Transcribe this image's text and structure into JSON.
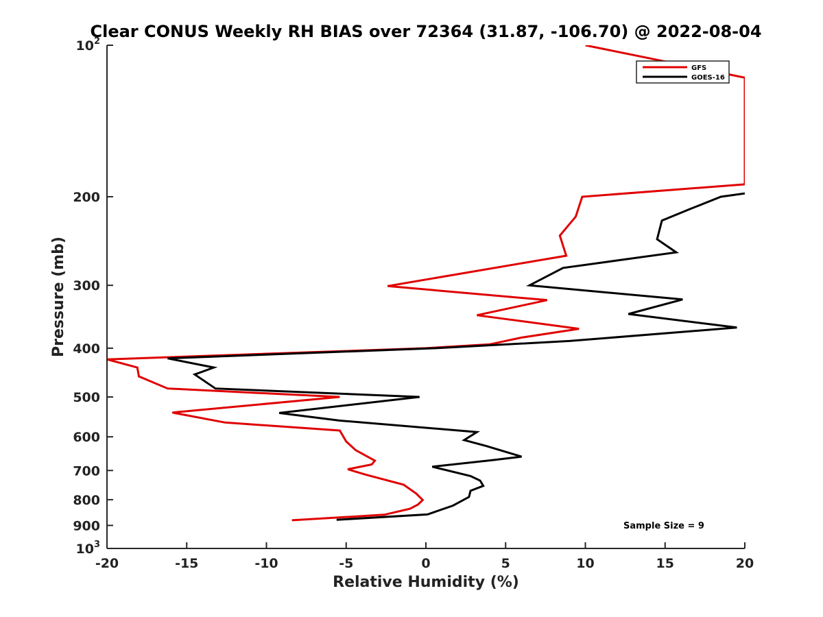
{
  "chart_data": {
    "type": "line",
    "title": "Clear CONUS Weekly RH BIAS over 72364 (31.87, -106.70) @ 2022-08-04",
    "xlabel": "Relative Humidity (%)",
    "ylabel": "Pressure (mb)",
    "xlim": [
      -20,
      20
    ],
    "ylim": [
      100,
      1000
    ],
    "yscale": "log",
    "y_reversed": true,
    "grid": false,
    "legend_position": "top-right",
    "x_ticks": [
      "-20",
      "-15",
      "-10",
      "-5",
      "0",
      "5",
      "10",
      "15",
      "20"
    ],
    "y_ticks": [
      {
        "value": 100,
        "base": "10",
        "exp": "2"
      },
      {
        "value": 200,
        "base": "200",
        "exp": ""
      },
      {
        "value": 300,
        "base": "300",
        "exp": ""
      },
      {
        "value": 400,
        "base": "400",
        "exp": ""
      },
      {
        "value": 500,
        "base": "500",
        "exp": ""
      },
      {
        "value": 600,
        "base": "600",
        "exp": ""
      },
      {
        "value": 700,
        "base": "700",
        "exp": ""
      },
      {
        "value": 800,
        "base": "800",
        "exp": ""
      },
      {
        "value": 900,
        "base": "900",
        "exp": ""
      },
      {
        "value": 1000,
        "base": "10",
        "exp": "3"
      }
    ],
    "annotation": "Sample Size = 9",
    "series": [
      {
        "name": "GFS",
        "color": "#e00000",
        "points": [
          {
            "x": 10,
            "y": 100
          },
          {
            "x": 20,
            "y": 116
          },
          {
            "x": 20,
            "y": 189
          },
          {
            "x": 9.8,
            "y": 200
          },
          {
            "x": 9.4,
            "y": 219
          },
          {
            "x": 8.4,
            "y": 239
          },
          {
            "x": 8.8,
            "y": 262
          },
          {
            "x": -2.4,
            "y": 301
          },
          {
            "x": 7.6,
            "y": 321
          },
          {
            "x": 3.2,
            "y": 344
          },
          {
            "x": 9.6,
            "y": 366
          },
          {
            "x": 6,
            "y": 381
          },
          {
            "x": 4,
            "y": 393
          },
          {
            "x": 0,
            "y": 400
          },
          {
            "x": -20,
            "y": 421
          },
          {
            "x": -18.1,
            "y": 437
          },
          {
            "x": -18,
            "y": 455
          },
          {
            "x": -16.2,
            "y": 481
          },
          {
            "x": -5.4,
            "y": 500
          },
          {
            "x": -15.9,
            "y": 537
          },
          {
            "x": -12.6,
            "y": 562
          },
          {
            "x": -5.4,
            "y": 583
          },
          {
            "x": -5,
            "y": 613
          },
          {
            "x": -4.4,
            "y": 638
          },
          {
            "x": -3.2,
            "y": 669
          },
          {
            "x": -3.4,
            "y": 681
          },
          {
            "x": -4.9,
            "y": 696
          },
          {
            "x": -3.8,
            "y": 713
          },
          {
            "x": -1.4,
            "y": 747
          },
          {
            "x": -0.6,
            "y": 778
          },
          {
            "x": -0.2,
            "y": 801
          },
          {
            "x": -0.5,
            "y": 818
          },
          {
            "x": -1,
            "y": 834
          },
          {
            "x": -2.6,
            "y": 857
          },
          {
            "x": -8.4,
            "y": 879
          }
        ]
      },
      {
        "name": "GOES-16",
        "color": "#000000",
        "points": [
          {
            "x": 20,
            "y": 197
          },
          {
            "x": 18.5,
            "y": 200
          },
          {
            "x": 16.5,
            "y": 212
          },
          {
            "x": 14.8,
            "y": 223
          },
          {
            "x": 14.5,
            "y": 243
          },
          {
            "x": 15.7,
            "y": 258
          },
          {
            "x": 8.6,
            "y": 277
          },
          {
            "x": 6.5,
            "y": 300
          },
          {
            "x": 16.1,
            "y": 320
          },
          {
            "x": 12.7,
            "y": 342
          },
          {
            "x": 19.5,
            "y": 364
          },
          {
            "x": 9,
            "y": 387
          },
          {
            "x": 0.6,
            "y": 400
          },
          {
            "x": -16.2,
            "y": 419
          },
          {
            "x": -13.3,
            "y": 437
          },
          {
            "x": -14.5,
            "y": 451
          },
          {
            "x": -13.2,
            "y": 481
          },
          {
            "x": -0.4,
            "y": 500
          },
          {
            "x": -9.2,
            "y": 538
          },
          {
            "x": -5.4,
            "y": 557
          },
          {
            "x": 3.2,
            "y": 587
          },
          {
            "x": 2.4,
            "y": 609
          },
          {
            "x": 3.8,
            "y": 626
          },
          {
            "x": 6,
            "y": 657
          },
          {
            "x": 4.1,
            "y": 668
          },
          {
            "x": 0.4,
            "y": 688
          },
          {
            "x": 2.8,
            "y": 718
          },
          {
            "x": 3.4,
            "y": 733
          },
          {
            "x": 3.6,
            "y": 751
          },
          {
            "x": 2.8,
            "y": 768
          },
          {
            "x": 2.7,
            "y": 790
          },
          {
            "x": 1.7,
            "y": 822
          },
          {
            "x": 0.1,
            "y": 856
          },
          {
            "x": -5.6,
            "y": 877
          }
        ]
      }
    ]
  }
}
